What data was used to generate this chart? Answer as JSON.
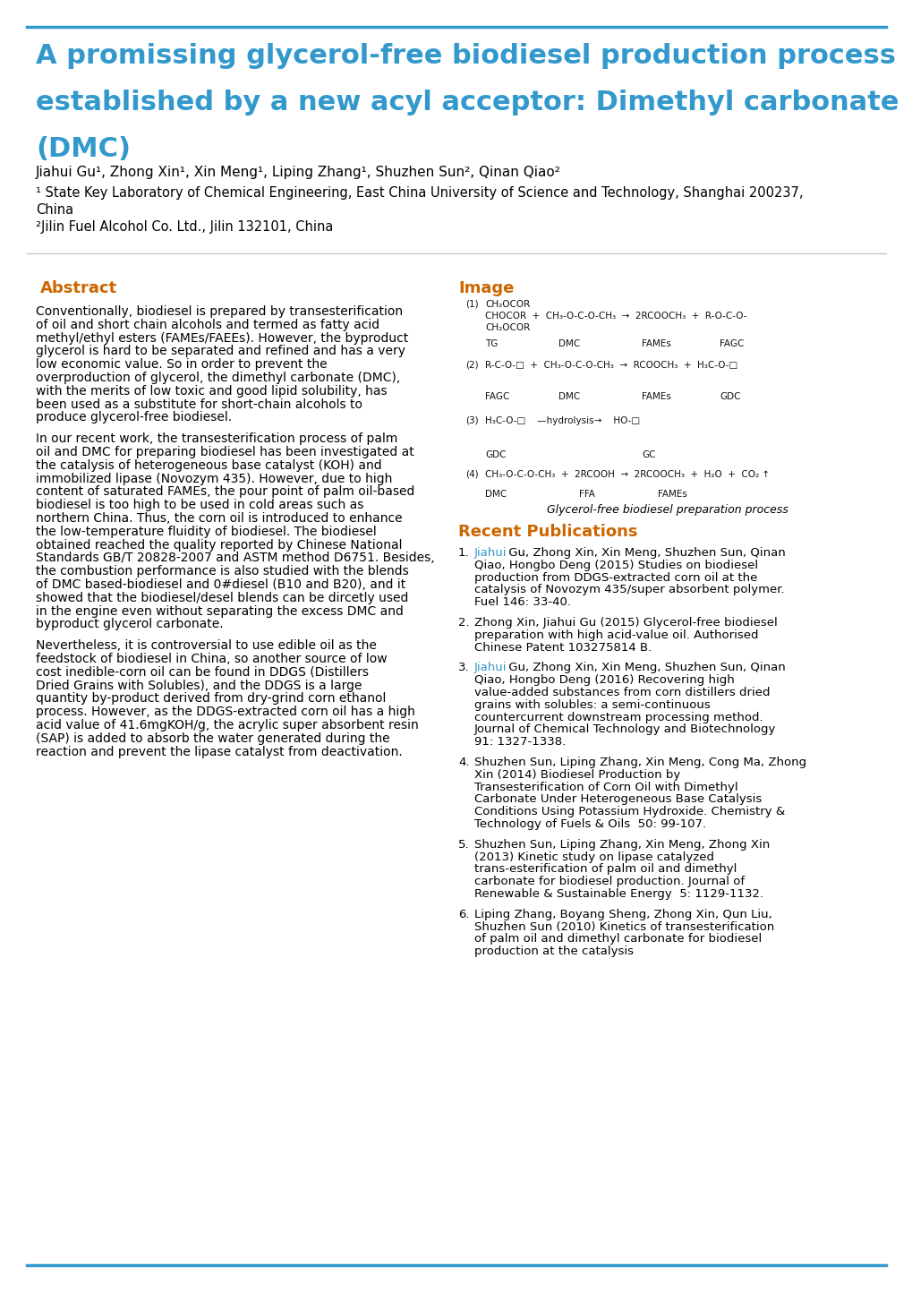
{
  "title_line1": "A promissing glycerol-free biodiesel production process",
  "title_line2": "established by a new acyl acceptor: Dimethyl carbonate",
  "title_line3": "(DMC)",
  "title_color": "#3399CC",
  "authors": "Jiahui Gu¹, Zhong Xin¹, Xin Meng¹, Liping Zhang¹, Shuzhen Sun², Qinan Qiao²",
  "affil1": "¹ State Key Laboratory of Chemical Engineering, East China University of Science and Technology, Shanghai 200237,",
  "affil1b": "China",
  "affil2": "²Jilin Fuel Alcohol Co. Ltd., Jilin 132101, China",
  "abstract_title": "Abstract",
  "abstract_title_color": "#CC6600",
  "abstract_paragraphs": [
    "Conventionally, biodiesel is prepared by transesterification of oil and short chain alcohols and termed as fatty acid methyl/ethyl esters (FAMEs/FAEEs). However, the byproduct glycerol is hard to be separated and refined and has a very low economic value. So in order to prevent the overproduction of glycerol, the dimethyl carbonate (DMC), with the merits of low toxic and good lipid solubility, has been used as a substitute for short-chain alcohols to produce glycerol-free biodiesel.",
    "In our recent work, the transesterification process of palm oil and DMC for preparing biodiesel has been investigated at the catalysis of heterogeneous base catalyst (KOH) and immobilized lipase (Novozym 435). However, due to high content of saturated FAMEs, the pour point of palm oil-based biodiesel is too high to be used in cold areas such as northern China. Thus, the corn oil is introduced to enhance the low-temperature fluidity of biodiesel. The biodiesel obtained reached the quality reported by Chinese National Standards GB/T 20828-2007 and ASTM method D6751. Besides, the combustion performance is also studied with the blends of DMC based-biodiesel and 0#diesel (B10 and B20), and it showed that the biodiesel/desel blends can be dircetly used in the engine even without separating the excess DMC and byproduct glycerol carbonate.",
    "Nevertheless, it is controversial to use edible oil as the feedstock of biodiesel in China, so another source of low cost inedible-corn oil can be found in DDGS (Distillers Dried Grains with Solubles), and the DDGS is a large quantity by-product derived from dry-grind corn ethanol process. However, as the DDGS-extracted corn oil has a high acid value of 41.6mgKOH/g, the acrylic super absorbent resin (SAP) is added to absorb the water generated during the reaction and prevent the lipase catalyst from deactivation."
  ],
  "image_title": "Image",
  "image_title_color": "#CC6600",
  "image_caption": "Glycerol-free biodiesel preparation process",
  "recent_pub_title": "Recent Publications",
  "recent_pub_title_color": "#CC6600",
  "bg_color": "#FFFFFF",
  "border_color": "#3399CC",
  "text_color": "#000000",
  "link_color": "#3399CC"
}
